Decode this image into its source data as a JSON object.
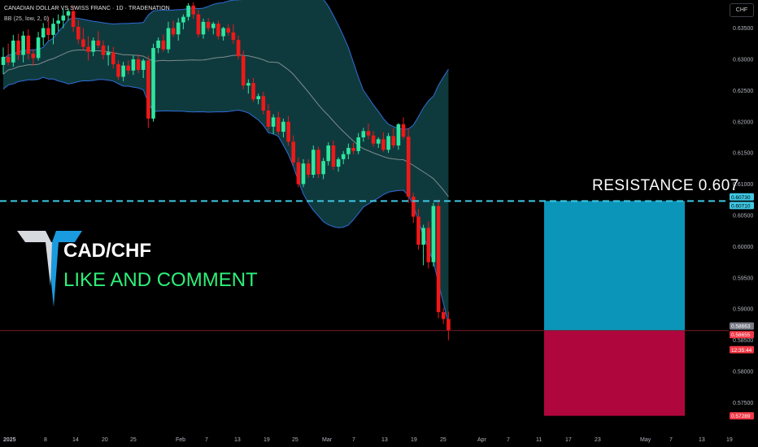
{
  "header": {
    "symbol_line": "CANADIAN DOLLAR VS SWISS FRANC · 1D · TRADENATION",
    "indicator_line": "BB (25, low, 2, 0)"
  },
  "toolbar": {
    "currency_label": "CHF"
  },
  "annotations": {
    "resistance_text": "RESISTANCE  0.607",
    "pair_title": "CAD/CHF",
    "pair_subtitle": "LIKE AND COMMENT"
  },
  "colors": {
    "background": "#000000",
    "bull": "#2ee6a0",
    "bear": "#f01818",
    "band_fill": "#0f3a3d",
    "band_line": "#2f6dd6",
    "basis_line": "#7d8c8e",
    "resistance_line": "#3fc8e4",
    "target_zone": "#0b95b8",
    "stop_zone": "#b0063e",
    "logo_accent": "#1a9be0"
  },
  "chart_data": {
    "type": "candlestick",
    "title": "CANADIAN DOLLAR VS SWISS FRANC · 1D · TRADENATION",
    "x_tick_labels": [
      "2025",
      "8",
      "14",
      "20",
      "25",
      "Feb",
      "7",
      "13",
      "19",
      "25",
      "Mar",
      "7",
      "13",
      "19",
      "25",
      "Apr",
      "7",
      "11",
      "17",
      "23",
      "May",
      "7",
      "13",
      "19"
    ],
    "y_tick_labels": [
      "0.63500",
      "0.63000",
      "0.62500",
      "0.62000",
      "0.61500",
      "0.61000",
      "0.60500",
      "0.60000",
      "0.59500",
      "0.59000",
      "0.58500",
      "0.58000",
      "0.57500"
    ],
    "ylim": [
      0.5705,
      0.6395
    ],
    "price_labels": [
      {
        "name": "resistance",
        "text": "0.60730",
        "value": 0.6073
      },
      {
        "name": "resistance-2",
        "text": "0.60710",
        "value": 0.6071
      },
      {
        "name": "last-price",
        "text": "0.58663",
        "value": 0.58663
      },
      {
        "name": "entry",
        "text": "0.58655",
        "value": 0.58655
      },
      {
        "name": "countdown",
        "text": "12:35:44",
        "value": 0.5853
      },
      {
        "name": "target",
        "text": "0.57289",
        "value": 0.57289
      }
    ],
    "resistance_level": 0.6073,
    "entry_level": 0.58655,
    "target_level": 0.57289,
    "bollinger": {
      "period": 25,
      "source": "low",
      "mult": 2,
      "offset": 0
    },
    "candles": [
      [
        0.6291,
        0.6319,
        0.6276,
        0.6304
      ],
      [
        0.6304,
        0.6325,
        0.629,
        0.6295
      ],
      [
        0.6295,
        0.6339,
        0.6288,
        0.633
      ],
      [
        0.633,
        0.6341,
        0.6299,
        0.6307
      ],
      [
        0.6307,
        0.6345,
        0.6295,
        0.6338
      ],
      [
        0.6338,
        0.6348,
        0.63,
        0.6309
      ],
      [
        0.6309,
        0.6316,
        0.629,
        0.6302
      ],
      [
        0.6302,
        0.6344,
        0.6298,
        0.6335
      ],
      [
        0.6335,
        0.6358,
        0.6322,
        0.635
      ],
      [
        0.635,
        0.6368,
        0.633,
        0.6339
      ],
      [
        0.6339,
        0.6366,
        0.6324,
        0.6357
      ],
      [
        0.6357,
        0.6372,
        0.6345,
        0.6362
      ],
      [
        0.6362,
        0.638,
        0.635,
        0.637
      ],
      [
        0.637,
        0.6381,
        0.6362,
        0.6377
      ],
      [
        0.6377,
        0.6386,
        0.6344,
        0.6352
      ],
      [
        0.6352,
        0.6363,
        0.6325,
        0.6332
      ],
      [
        0.6332,
        0.635,
        0.6315,
        0.632
      ],
      [
        0.632,
        0.6337,
        0.6298,
        0.6312
      ],
      [
        0.6312,
        0.6335,
        0.6305,
        0.633
      ],
      [
        0.633,
        0.6345,
        0.6318,
        0.6322
      ],
      [
        0.6322,
        0.633,
        0.63,
        0.6307
      ],
      [
        0.6307,
        0.6322,
        0.629,
        0.6311
      ],
      [
        0.6311,
        0.632,
        0.6285,
        0.6292
      ],
      [
        0.6292,
        0.6298,
        0.6267,
        0.6272
      ],
      [
        0.6272,
        0.6296,
        0.6265,
        0.629
      ],
      [
        0.629,
        0.6298,
        0.6276,
        0.6282
      ],
      [
        0.6282,
        0.6306,
        0.6275,
        0.63
      ],
      [
        0.63,
        0.6308,
        0.6278,
        0.6283
      ],
      [
        0.6283,
        0.6301,
        0.627,
        0.6298
      ],
      [
        0.6298,
        0.6306,
        0.619,
        0.6205
      ],
      [
        0.6205,
        0.6325,
        0.62,
        0.6318
      ],
      [
        0.6318,
        0.6335,
        0.631,
        0.633
      ],
      [
        0.633,
        0.634,
        0.6312,
        0.6316
      ],
      [
        0.6316,
        0.636,
        0.631,
        0.635
      ],
      [
        0.635,
        0.6362,
        0.6336,
        0.634
      ],
      [
        0.634,
        0.6366,
        0.633,
        0.6359
      ],
      [
        0.6359,
        0.6372,
        0.6348,
        0.6368
      ],
      [
        0.6368,
        0.639,
        0.6362,
        0.6386
      ],
      [
        0.6386,
        0.6391,
        0.6365,
        0.6372
      ],
      [
        0.6372,
        0.6379,
        0.6335,
        0.634
      ],
      [
        0.634,
        0.6365,
        0.6333,
        0.636
      ],
      [
        0.636,
        0.6366,
        0.6345,
        0.635
      ],
      [
        0.635,
        0.636,
        0.634,
        0.6357
      ],
      [
        0.6357,
        0.6362,
        0.6332,
        0.6337
      ],
      [
        0.6337,
        0.6352,
        0.633,
        0.635
      ],
      [
        0.635,
        0.6356,
        0.6338,
        0.6343
      ],
      [
        0.6343,
        0.6356,
        0.6325,
        0.6331
      ],
      [
        0.6331,
        0.6338,
        0.63,
        0.6305
      ],
      [
        0.6305,
        0.6314,
        0.6252,
        0.6258
      ],
      [
        0.6258,
        0.6268,
        0.6245,
        0.6262
      ],
      [
        0.6262,
        0.627,
        0.6232,
        0.6236
      ],
      [
        0.6236,
        0.6245,
        0.6228,
        0.6241
      ],
      [
        0.6241,
        0.6248,
        0.6212,
        0.6218
      ],
      [
        0.6218,
        0.6228,
        0.6186,
        0.6192
      ],
      [
        0.6192,
        0.6212,
        0.618,
        0.6207
      ],
      [
        0.6207,
        0.6216,
        0.6179,
        0.6184
      ],
      [
        0.6184,
        0.6205,
        0.6175,
        0.62
      ],
      [
        0.62,
        0.6209,
        0.6162,
        0.6168
      ],
      [
        0.6168,
        0.6178,
        0.613,
        0.6135
      ],
      [
        0.6135,
        0.6143,
        0.6095,
        0.61
      ],
      [
        0.61,
        0.614,
        0.6095,
        0.6133
      ],
      [
        0.6133,
        0.614,
        0.611,
        0.6115
      ],
      [
        0.6115,
        0.6162,
        0.611,
        0.6155
      ],
      [
        0.6155,
        0.616,
        0.611,
        0.6116
      ],
      [
        0.6116,
        0.6142,
        0.6108,
        0.6137
      ],
      [
        0.6137,
        0.6167,
        0.613,
        0.6162
      ],
      [
        0.6162,
        0.617,
        0.6123,
        0.6128
      ],
      [
        0.6128,
        0.6143,
        0.612,
        0.614
      ],
      [
        0.614,
        0.6153,
        0.6132,
        0.6148
      ],
      [
        0.6148,
        0.6165,
        0.614,
        0.6158
      ],
      [
        0.6158,
        0.6166,
        0.6148,
        0.6153
      ],
      [
        0.6153,
        0.6182,
        0.6148,
        0.6175
      ],
      [
        0.6175,
        0.619,
        0.6168,
        0.6185
      ],
      [
        0.6185,
        0.6197,
        0.6172,
        0.6178
      ],
      [
        0.6178,
        0.6185,
        0.616,
        0.6165
      ],
      [
        0.6165,
        0.6175,
        0.6158,
        0.6172
      ],
      [
        0.6172,
        0.6183,
        0.6152,
        0.6155
      ],
      [
        0.6155,
        0.6182,
        0.615,
        0.6177
      ],
      [
        0.6177,
        0.619,
        0.6158,
        0.6162
      ],
      [
        0.6162,
        0.6198,
        0.6155,
        0.6196
      ],
      [
        0.6196,
        0.6207,
        0.6172,
        0.6176
      ],
      [
        0.6176,
        0.619,
        0.607,
        0.608
      ],
      [
        0.608,
        0.6086,
        0.6038,
        0.6048
      ],
      [
        0.6048,
        0.606,
        0.5995,
        0.6003
      ],
      [
        0.6003,
        0.6035,
        0.597,
        0.603
      ],
      [
        0.603,
        0.604,
        0.5965,
        0.5975
      ],
      [
        0.5975,
        0.607,
        0.5968,
        0.6065
      ],
      [
        0.6065,
        0.6075,
        0.5885,
        0.5895
      ],
      [
        0.5895,
        0.5902,
        0.5876,
        0.5884
      ],
      [
        0.5884,
        0.5896,
        0.585,
        0.5866
      ]
    ]
  }
}
